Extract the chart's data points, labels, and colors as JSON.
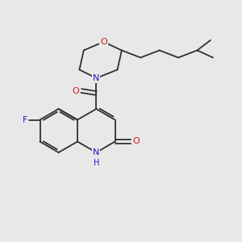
{
  "background_color": "#e8e8e8",
  "bond_color": "#303030",
  "atom_colors": {
    "N": "#1a1acc",
    "O": "#cc1a1a",
    "F": "#1a1acc"
  },
  "figsize": [
    3.0,
    3.0
  ],
  "dpi": 100,
  "xlim": [
    0,
    10
  ],
  "ylim": [
    0,
    10
  ]
}
